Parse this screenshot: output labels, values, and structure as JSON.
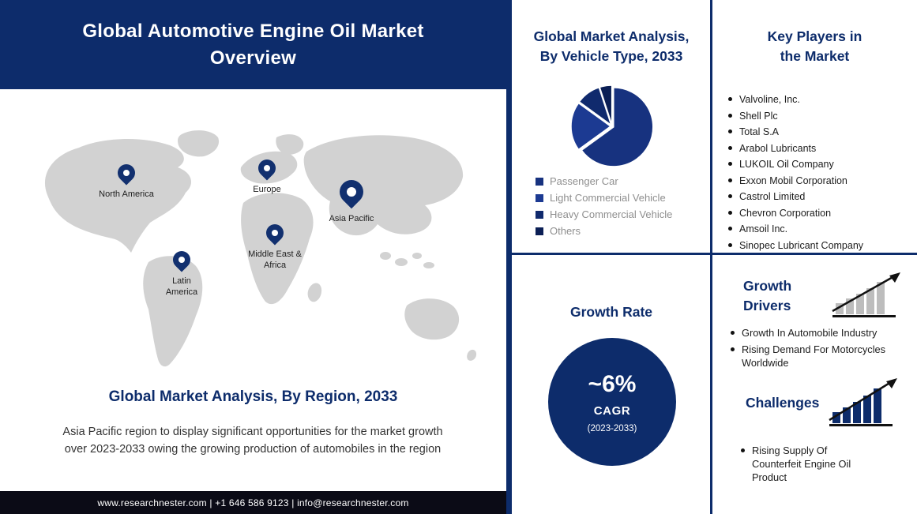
{
  "colors": {
    "navy": "#0d2c6b",
    "map_gray": "#d2d2d2",
    "legend_text": "#8f8f8f",
    "footer_bg": "#0b0b16"
  },
  "header": {
    "title": "Global Automotive Engine Oil Market\nOverview"
  },
  "region_section": {
    "heading": "Global Market Analysis, By Region, 2033",
    "description": "Asia Pacific region to display significant opportunities for the market growth\nover 2023-2033 owing the growing production of automobiles in the region",
    "pins": [
      {
        "label": "North America"
      },
      {
        "label": "Europe"
      },
      {
        "label": "Asia Pacific"
      },
      {
        "label": "Middle East & Africa"
      },
      {
        "label": "Latin America"
      }
    ]
  },
  "vehicle_type_section": {
    "heading": "Global Market Analysis,\nBy Vehicle Type, 2033"
  },
  "key_players": {
    "heading": "Key Players in\nthe Market",
    "items": [
      "Valvoline, Inc.",
      "Shell Plc",
      "Total S.A",
      "Arabol Lubricants",
      "LUKOIL Oil Company",
      "Exxon Mobil Corporation",
      "Castrol Limited",
      "Chevron Corporation",
      "Amsoil Inc.",
      "Sinopec Lubricant Company"
    ]
  },
  "growth_rate": {
    "heading": "Growth Rate",
    "value": "~6%",
    "label": "CAGR",
    "period": "(2023-2033)"
  },
  "growth_drivers": {
    "heading": "Growth\nDrivers",
    "items": [
      "Growth In Automobile Industry",
      "Rising Demand For Motorcycles Worldwide"
    ]
  },
  "challenges": {
    "heading": "Challenges",
    "items": [
      "Rising Supply Of Counterfeit Engine Oil Product"
    ]
  },
  "footer": {
    "text": "www.researchnester.com  | +1 646 586 9123 | info@researchnester.com"
  },
  "chart_data": {
    "type": "pie",
    "title": "Global Market Analysis, By Vehicle Type, 2033",
    "labels": [
      "Passenger Car",
      "Light Commercial Vehicle",
      "Heavy Commercial Vehicle",
      "Others"
    ],
    "values": [
      65,
      20,
      10,
      5
    ],
    "unit": "percent (estimated from slice areas)",
    "colors": [
      "#17327f",
      "#1c3a92",
      "#102a6d",
      "#0b1f55"
    ],
    "legend_position": "bottom-left",
    "start_angle_deg": -90,
    "direction": "clockwise"
  }
}
